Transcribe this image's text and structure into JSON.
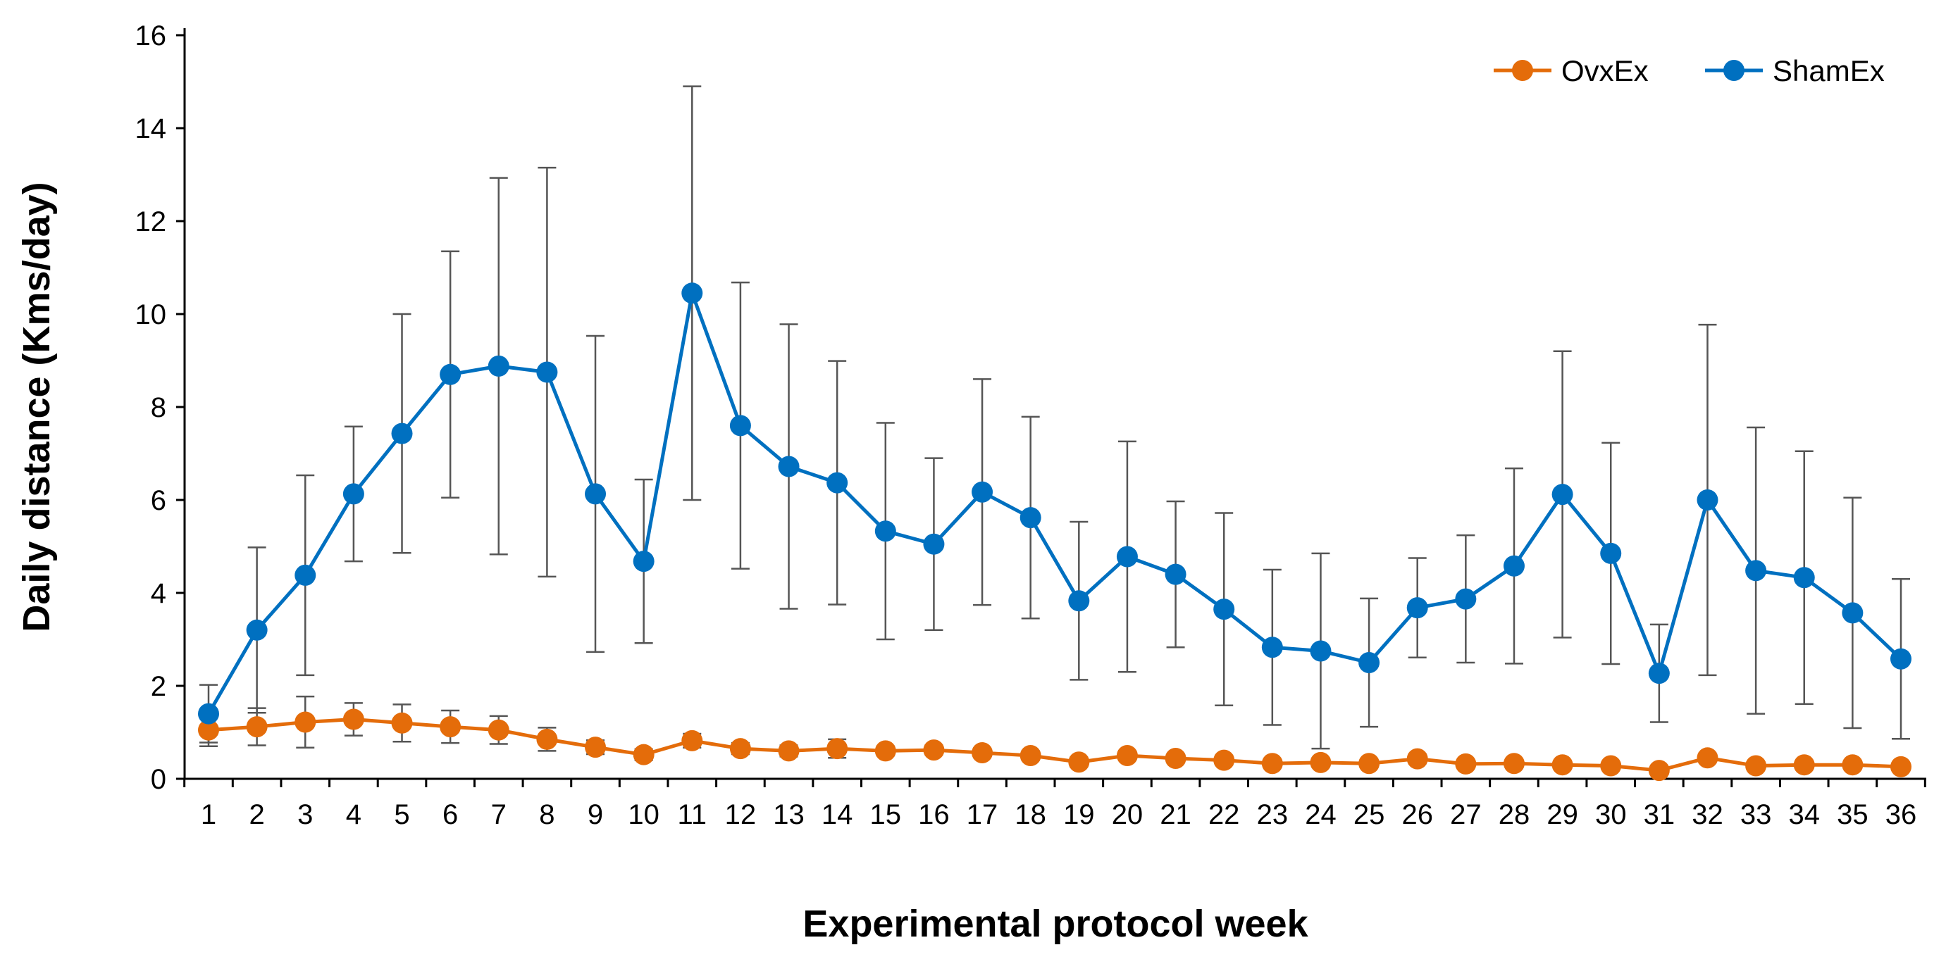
{
  "chart_data": {
    "type": "line",
    "title": "",
    "xlabel": "Experimental protocol week",
    "ylabel": "Daily distance (Kms/day)",
    "ylim": [
      0,
      16
    ],
    "yticks": [
      0,
      2,
      4,
      6,
      8,
      10,
      12,
      14,
      16
    ],
    "grid": false,
    "legend_position": "top-right",
    "x": [
      1,
      2,
      3,
      4,
      5,
      6,
      7,
      8,
      9,
      10,
      11,
      12,
      13,
      14,
      15,
      16,
      17,
      18,
      19,
      20,
      21,
      22,
      23,
      24,
      25,
      26,
      27,
      28,
      29,
      30,
      31,
      32,
      33,
      34,
      35,
      36
    ],
    "series": [
      {
        "name": "OvxEx",
        "color": "#E46C0A",
        "values": [
          1.05,
          1.12,
          1.22,
          1.28,
          1.2,
          1.12,
          1.05,
          0.85,
          0.68,
          0.52,
          0.82,
          0.65,
          0.6,
          0.65,
          0.6,
          0.62,
          0.56,
          0.5,
          0.36,
          0.5,
          0.44,
          0.4,
          0.33,
          0.35,
          0.33,
          0.43,
          0.32,
          0.33,
          0.3,
          0.28,
          0.18,
          0.45,
          0.28,
          0.3,
          0.3,
          0.26
        ],
        "error": [
          0.35,
          0.4,
          0.55,
          0.35,
          0.4,
          0.35,
          0.3,
          0.25,
          0.15,
          0.12,
          0.15,
          0.12,
          0.12,
          0.2,
          0.1,
          0.1,
          0.1,
          0.1,
          0.1,
          0.1,
          0.1,
          0.1,
          0.08,
          0.1,
          0.08,
          0.1,
          0.08,
          0.08,
          0.08,
          0.08,
          0.06,
          0.1,
          0.08,
          0.08,
          0.08,
          0.08
        ]
      },
      {
        "name": "ShamEx",
        "color": "#0070C0",
        "values": [
          1.4,
          3.2,
          4.38,
          6.13,
          7.43,
          8.7,
          8.88,
          8.75,
          6.13,
          4.68,
          10.45,
          7.6,
          6.72,
          6.37,
          5.33,
          5.05,
          6.17,
          5.62,
          3.83,
          4.78,
          4.4,
          3.65,
          2.83,
          2.75,
          2.5,
          3.68,
          3.87,
          4.58,
          6.12,
          4.85,
          2.27,
          6.0,
          4.48,
          4.33,
          3.57,
          2.58
        ],
        "error": [
          0.62,
          1.78,
          2.15,
          1.45,
          2.57,
          2.65,
          4.05,
          4.4,
          3.4,
          1.76,
          4.45,
          3.08,
          3.06,
          2.62,
          2.33,
          1.85,
          2.43,
          2.17,
          1.7,
          2.48,
          1.57,
          2.07,
          1.67,
          2.1,
          1.38,
          1.07,
          1.37,
          2.1,
          3.08,
          2.38,
          1.05,
          3.77,
          3.08,
          2.72,
          2.48,
          1.72
        ]
      }
    ]
  }
}
